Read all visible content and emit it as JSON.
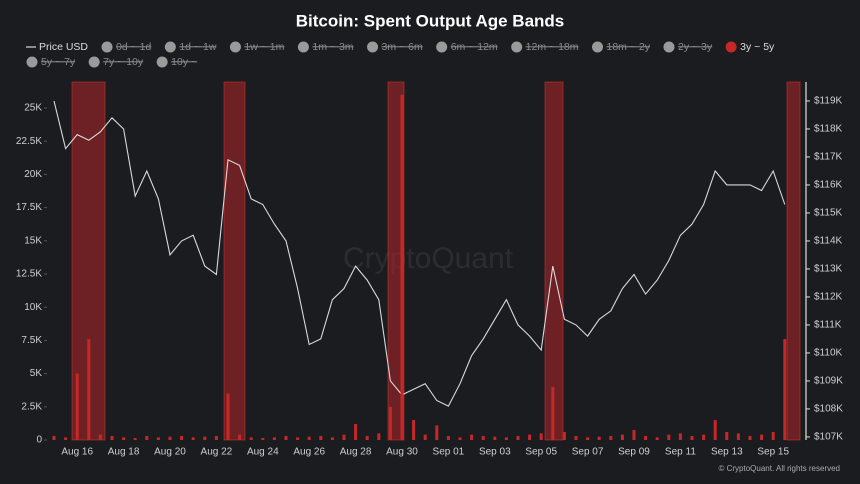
{
  "chart_data": {
    "type": "bar-line",
    "title": "Bitcoin: Spent Output Age Bands",
    "watermark": "CryptoQuant",
    "footer": "© CryptoQuant. All rights reserved",
    "x": [
      null,
      null,
      "Aug 16",
      null,
      null,
      null,
      "Aug 18",
      null,
      null,
      null,
      "Aug 20",
      null,
      null,
      null,
      "Aug 22",
      null,
      null,
      null,
      "Aug 24",
      null,
      null,
      null,
      "Aug 26",
      null,
      null,
      null,
      "Aug 28",
      null,
      null,
      null,
      "Aug 30",
      null,
      null,
      null,
      "Sep 01",
      null,
      null,
      null,
      "Sep 03",
      null,
      null,
      null,
      "Sep 05",
      null,
      null,
      null,
      "Sep 07",
      null,
      null,
      null,
      "Sep 09",
      null,
      null,
      null,
      "Sep 11",
      null,
      null,
      null,
      "Sep 13",
      null,
      null,
      null,
      "Sep 15",
      null
    ],
    "series": [
      {
        "name": "Price USD",
        "color": "#d9d9d9",
        "type": "line",
        "axis": "y2",
        "values": [
          119000,
          117300,
          117800,
          117600,
          117900,
          118400,
          118000,
          115600,
          116500,
          115500,
          113500,
          114000,
          114200,
          113100,
          112800,
          116900,
          116700,
          115500,
          115300,
          114600,
          114000,
          112300,
          110300,
          110500,
          111900,
          112300,
          113100,
          112600,
          111900,
          109000,
          108500,
          108700,
          108900,
          108300,
          108100,
          108900,
          109900,
          110500,
          111200,
          111900,
          111000,
          110600,
          110100,
          113100,
          111200,
          111000,
          110600,
          111200,
          111500,
          112300,
          112800,
          112100,
          112600,
          113300,
          114200,
          114600,
          115300,
          116500,
          116000,
          116000,
          116000,
          115800,
          116500,
          115300
        ]
      },
      {
        "name": "0d ~ 1d",
        "color": "#9a9a9a",
        "hidden": true
      },
      {
        "name": "1d ~ 1w",
        "color": "#9a9a9a",
        "hidden": true
      },
      {
        "name": "1w ~ 1m",
        "color": "#9a9a9a",
        "hidden": true
      },
      {
        "name": "1m ~ 3m",
        "color": "#9a9a9a",
        "hidden": true
      },
      {
        "name": "3m ~ 6m",
        "color": "#9a9a9a",
        "hidden": true
      },
      {
        "name": "6m ~ 12m",
        "color": "#9a9a9a",
        "hidden": true
      },
      {
        "name": "12m ~ 18m",
        "color": "#9a9a9a",
        "hidden": true
      },
      {
        "name": "18m ~ 2y",
        "color": "#9a9a9a",
        "hidden": true
      },
      {
        "name": "2y ~ 3y",
        "color": "#9a9a9a",
        "hidden": true
      },
      {
        "name": "3y ~ 5y",
        "color": "#c62828",
        "type": "bar",
        "values": [
          300,
          200,
          5000,
          7600,
          400,
          300,
          200,
          150,
          300,
          200,
          250,
          300,
          200,
          250,
          300,
          3500,
          400,
          200,
          150,
          200,
          300,
          200,
          250,
          300,
          200,
          400,
          1200,
          300,
          500,
          2500,
          26000,
          1500,
          400,
          1100,
          300,
          200,
          400,
          300,
          250,
          200,
          300,
          400,
          500,
          4000,
          600,
          300,
          200,
          250,
          300,
          400,
          750,
          300,
          200,
          400,
          500,
          300,
          400,
          1500,
          600,
          500,
          300,
          400,
          600,
          7600
        ]
      },
      {
        "name": "5y ~ 7y",
        "color": "#9a9a9a",
        "hidden": true
      },
      {
        "name": "7y ~ 10y",
        "color": "#9a9a9a",
        "hidden": true
      },
      {
        "name": "10y ~",
        "color": "#9a9a9a",
        "hidden": true
      }
    ],
    "ylim": [
      0,
      26730
    ],
    "yticks": [
      0,
      {
        "value": 2500,
        "label": "2.5K"
      },
      {
        "value": 5000,
        "label": "5K"
      },
      {
        "value": 7500,
        "label": "7.5K"
      },
      {
        "value": 10000,
        "label": "10K"
      },
      {
        "value": 12500,
        "label": "12.5K"
      },
      {
        "value": 15000,
        "label": "15K"
      },
      {
        "value": 17500,
        "label": "17.5K"
      },
      {
        "value": 20000,
        "label": "20K"
      },
      {
        "value": 22500,
        "label": "22.5K"
      },
      {
        "value": 25000,
        "label": "25K"
      }
    ],
    "y2lim": [
      106890,
      119570
    ],
    "y2ticks": [
      {
        "value": 107000,
        "label": "$107K"
      },
      {
        "value": 108000,
        "label": "$108K"
      },
      {
        "value": 109000,
        "label": "$109K"
      },
      {
        "value": 110000,
        "label": "$110K"
      },
      {
        "value": 111000,
        "label": "$111K"
      },
      {
        "value": 112000,
        "label": "$112K"
      },
      {
        "value": 113000,
        "label": "$113K"
      },
      {
        "value": 114000,
        "label": "$114K"
      },
      {
        "value": 115000,
        "label": "$115K"
      },
      {
        "value": 116000,
        "label": "$116K"
      },
      {
        "value": 117000,
        "label": "$117K"
      },
      {
        "value": 118000,
        "label": "$118K"
      },
      {
        "value": 119000,
        "label": "$119K"
      }
    ],
    "grid": false
  }
}
